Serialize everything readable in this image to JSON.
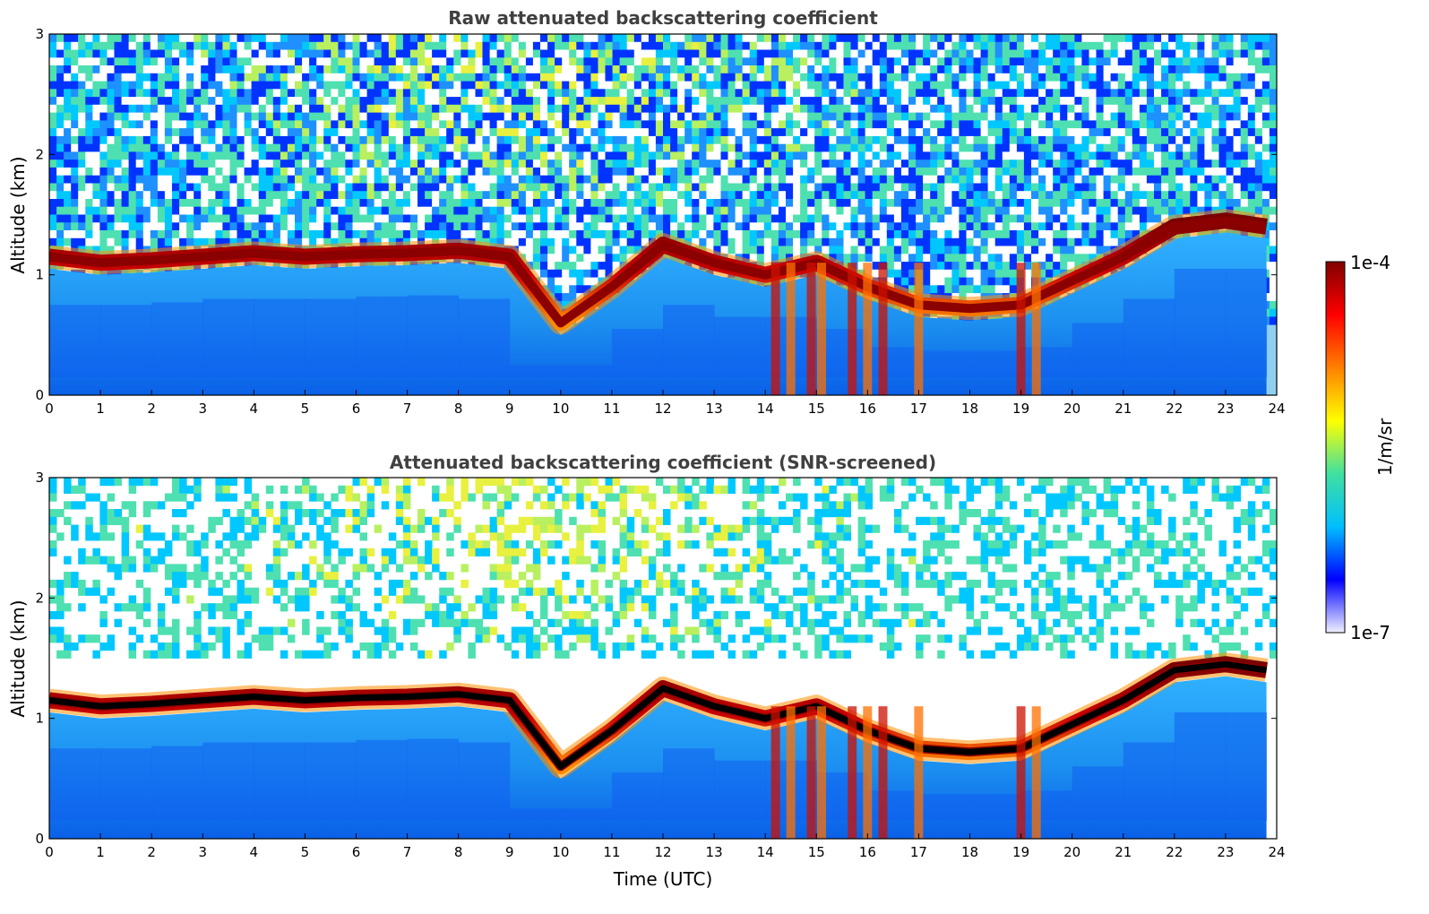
{
  "chart_data": [
    {
      "type": "heatmap",
      "title": "Raw attenuated backscattering coefficient",
      "xlabel": "",
      "ylabel": "Altitude (km)",
      "xlim": [
        0,
        24
      ],
      "ylim": [
        0,
        3
      ],
      "xticks": [
        "0",
        "1",
        "2",
        "3",
        "4",
        "5",
        "6",
        "7",
        "8",
        "9",
        "10",
        "11",
        "12",
        "13",
        "14",
        "15",
        "16",
        "17",
        "18",
        "19",
        "20",
        "21",
        "22",
        "23",
        "24"
      ],
      "yticks": [
        "0",
        "1",
        "2",
        "3"
      ],
      "cloud_layer_altitude_km": {
        "time_utc": [
          0,
          1,
          2,
          3,
          4,
          5,
          6,
          7,
          8,
          9,
          10,
          11,
          12,
          13,
          14,
          15,
          16,
          17,
          18,
          19,
          20,
          21,
          22,
          23,
          23.8
        ],
        "altitude": [
          1.15,
          1.1,
          1.12,
          1.15,
          1.18,
          1.15,
          1.17,
          1.18,
          1.2,
          1.15,
          0.6,
          0.9,
          1.25,
          1.1,
          1.0,
          1.1,
          0.9,
          0.75,
          0.72,
          0.75,
          0.95,
          1.15,
          1.4,
          1.45,
          1.4
        ]
      }
    },
    {
      "type": "heatmap",
      "title": "Attenuated backscattering coefficient (SNR-screened)",
      "xlabel": "Time (UTC)",
      "ylabel": "Altitude (km)",
      "xlim": [
        0,
        24
      ],
      "ylim": [
        0,
        3
      ],
      "xticks": [
        "0",
        "1",
        "2",
        "3",
        "4",
        "5",
        "6",
        "7",
        "8",
        "9",
        "10",
        "11",
        "12",
        "13",
        "14",
        "15",
        "16",
        "17",
        "18",
        "19",
        "20",
        "21",
        "22",
        "23",
        "24"
      ],
      "yticks": [
        "0",
        "1",
        "2",
        "3"
      ],
      "cloud_layer_altitude_km": {
        "time_utc": [
          0,
          1,
          2,
          3,
          4,
          5,
          6,
          7,
          8,
          9,
          10,
          11,
          12,
          13,
          14,
          15,
          16,
          17,
          18,
          19,
          20,
          21,
          22,
          23,
          23.8
        ],
        "altitude": [
          1.15,
          1.1,
          1.12,
          1.15,
          1.18,
          1.15,
          1.17,
          1.18,
          1.2,
          1.15,
          0.6,
          0.9,
          1.25,
          1.1,
          1.0,
          1.1,
          0.9,
          0.75,
          0.72,
          0.75,
          0.95,
          1.15,
          1.4,
          1.45,
          1.4
        ]
      }
    }
  ],
  "colorbar": {
    "max_label": "1e-4",
    "min_label": "1e-7",
    "unit_label": "1/m/sr",
    "stops": [
      "#f0f0ff",
      "#0000ff",
      "#00bfff",
      "#40e0a0",
      "#ffff00",
      "#ff8000",
      "#ff0000",
      "#800000"
    ]
  }
}
